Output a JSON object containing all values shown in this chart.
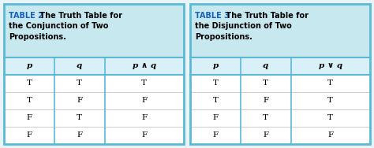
{
  "table2_title_bold": "TABLE 2",
  "table2_title_rest": " The Truth Table for\nthe Conjunction of Two\nPropositions.",
  "table2_headers": [
    "p",
    "q",
    "p ∧ q"
  ],
  "table2_rows": [
    [
      "T",
      "T",
      "T"
    ],
    [
      "T",
      "F",
      "F"
    ],
    [
      "F",
      "T",
      "F"
    ],
    [
      "F",
      "F",
      "F"
    ]
  ],
  "table3_title_bold": "TABLE 3",
  "table3_title_rest": " The Truth Table for\nthe Disjunction of Two\nPropositions.",
  "table3_headers": [
    "p",
    "q",
    "p ∨ q"
  ],
  "table3_rows": [
    [
      "T",
      "T",
      "T"
    ],
    [
      "T",
      "F",
      "T"
    ],
    [
      "F",
      "T",
      "T"
    ],
    [
      "F",
      "F",
      "F"
    ]
  ],
  "title_bg": "#c8e8f0",
  "header_bg": "#daf0f8",
  "table_bg": "#ffffff",
  "border_color": "#5bb8d4",
  "title_blue": "#1560bd",
  "fig_bg": "#e8f4f8",
  "outer_border": "#5bb8d4"
}
